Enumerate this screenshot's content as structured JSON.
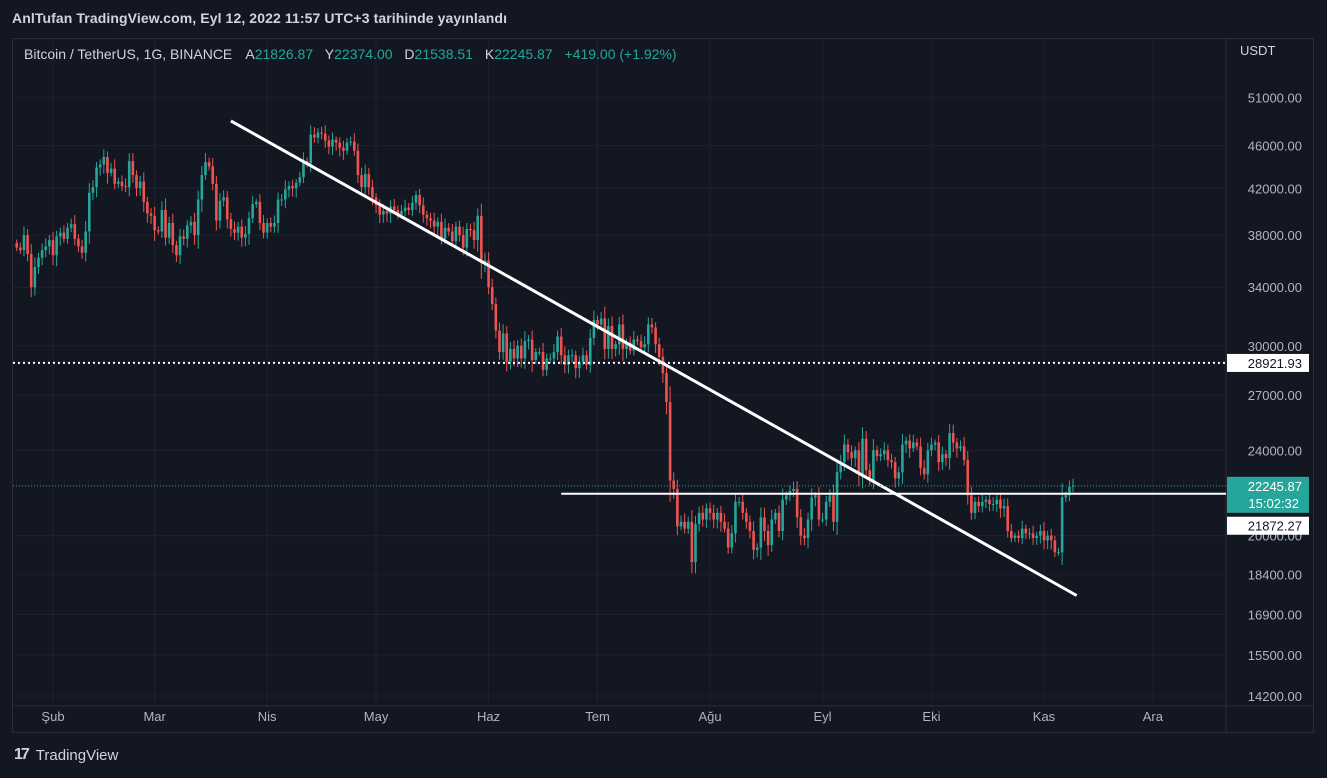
{
  "header": {
    "published": "AnlTufan TradingView.com, Eyl 12, 2022 11:57 UTC+3 tarihinde yayınlandı"
  },
  "legend": {
    "symbol": "Bitcoin / TetherUS, 1G, BINANCE",
    "open_label": "A",
    "open": "21826.87",
    "high_label": "Y",
    "high": "22374.00",
    "low_label": "D",
    "low": "21538.51",
    "close_label": "K",
    "close": "22245.87",
    "change": "+419.00 (+1.92%)"
  },
  "footer": {
    "brand": "TradingView",
    "logo_glyph": "17"
  },
  "colors": {
    "up": "#26a69a",
    "down": "#ef5350",
    "background": "#131722",
    "grid": "#1e2230",
    "drawing": "#ffffff"
  },
  "chart_data": {
    "type": "candlestick",
    "title": "Bitcoin / TetherUS, 1G, BINANCE",
    "currency": "USDT",
    "y_scale": "log",
    "ylim": [
      13900,
      55000
    ],
    "y_ticks": [
      51000,
      46000,
      42000,
      38000,
      34000,
      30000,
      27000,
      24000,
      20000,
      18400,
      16900,
      15500,
      14200
    ],
    "y_tick_labels": [
      "51000.00",
      "46000.00",
      "42000.00",
      "38000.00",
      "34000.00",
      "30000.00",
      "27000.00",
      "24000.00",
      "20000.00",
      "18400.00",
      "16900.00",
      "15500.00",
      "14200.00"
    ],
    "x_labels": [
      "Şub",
      "Mar",
      "Nis",
      "May",
      "Haz",
      "Tem",
      "Ağu",
      "Eyl",
      "Eki",
      "Kas",
      "Ara"
    ],
    "x_label_days": [
      0,
      28,
      59,
      89,
      120,
      150,
      181,
      212,
      242,
      273,
      303
    ],
    "x_range_days": [
      -10,
      315
    ],
    "first_candle_day": -10,
    "closes": [
      37000,
      36800,
      38000,
      36500,
      34000,
      35500,
      36200,
      36800,
      37100,
      37600,
      36400,
      37900,
      38200,
      37700,
      38600,
      38900,
      37700,
      37100,
      36600,
      38300,
      41600,
      42100,
      43900,
      44200,
      44900,
      43400,
      43800,
      42400,
      42600,
      42200,
      42100,
      44500,
      43200,
      42000,
      42600,
      40800,
      39800,
      39600,
      38400,
      38300,
      40100,
      37800,
      39000,
      37200,
      36400,
      37900,
      37700,
      38800,
      39100,
      38000,
      41000,
      43200,
      44400,
      44000,
      42400,
      39200,
      40900,
      41200,
      39300,
      38500,
      38200,
      38700,
      37800,
      38100,
      39400,
      40600,
      40800,
      39000,
      38200,
      39000,
      38700,
      39000,
      41000,
      41000,
      41900,
      42200,
      42000,
      42500,
      43000,
      44500,
      44300,
      47100,
      46800,
      47300,
      47200,
      46500,
      45900,
      46600,
      46300,
      45800,
      45500,
      46300,
      46400,
      45500,
      43200,
      42100,
      43300,
      42100,
      41200,
      40500,
      39700,
      40000,
      39800,
      40400,
      40100,
      39700,
      40000,
      40300,
      40100,
      40700,
      41400,
      40500,
      39700,
      39400,
      39200,
      38700,
      39100,
      37700,
      38600,
      38300,
      37500,
      38700,
      38000,
      37000,
      38500,
      38400,
      37600,
      39600,
      35800,
      36000,
      34000,
      32800,
      31000,
      29600,
      30800,
      29000,
      29800,
      29200,
      30000,
      29200,
      30300,
      30400,
      29100,
      29600,
      29600,
      28500,
      29200,
      29200,
      29600,
      30600,
      29400,
      28800,
      29400,
      29400,
      28600,
      29000,
      29400,
      28800,
      30500,
      31700,
      31400,
      31800,
      29800,
      31300,
      29800,
      30100,
      31400,
      29800,
      30200,
      29700,
      30400,
      30300,
      29900,
      30100,
      31400,
      31200,
      30100,
      29300,
      28300,
      26600,
      22500,
      22100,
      20400,
      20600,
      20300,
      20600,
      18900,
      20500,
      21000,
      20700,
      21200,
      21000,
      20700,
      21000,
      20600,
      20300,
      19500,
      20100,
      21500,
      21500,
      21000,
      20600,
      20200,
      19400,
      19500,
      20800,
      20200,
      19600,
      20700,
      21000,
      20200,
      21600,
      21800,
      22000,
      22100,
      20800,
      20000,
      19900,
      20700,
      21700,
      21800,
      20700,
      20700,
      21500,
      21800,
      20600,
      22900,
      23400,
      24300,
      23900,
      23600,
      24000,
      22800,
      24600,
      23000,
      22500,
      24000,
      23700,
      23800,
      24000,
      23500,
      23400,
      22600,
      22900,
      24300,
      24500,
      24100,
      24400,
      24200,
      23100,
      22800,
      24000,
      24300,
      24400,
      23400,
      23800,
      23600,
      24900,
      24400,
      24100,
      24200,
      23500,
      21800,
      21000,
      21500,
      21300,
      21500,
      21600,
      21400,
      21400,
      21600,
      21200,
      21300,
      20200,
      19900,
      20000,
      19900,
      20300,
      20100,
      20100,
      19900,
      20000,
      20200,
      19800,
      20000,
      19800,
      19300,
      19300,
      21700,
      21800,
      22200,
      22246
    ],
    "drawings": [
      {
        "type": "trendline",
        "from": {
          "day": 49,
          "price": 48500
        },
        "to": {
          "day": 282,
          "price": 17600
        }
      },
      {
        "type": "horizontal_line",
        "price": 28921.93,
        "label": "28921.93",
        "style": "dotted"
      },
      {
        "type": "horizontal_segment",
        "from_day": 140,
        "price": 21872.27,
        "label": "21872.27"
      },
      {
        "type": "last_price_line",
        "price": 22245.87,
        "label": "22245.87",
        "countdown": "15:02:32"
      }
    ]
  }
}
